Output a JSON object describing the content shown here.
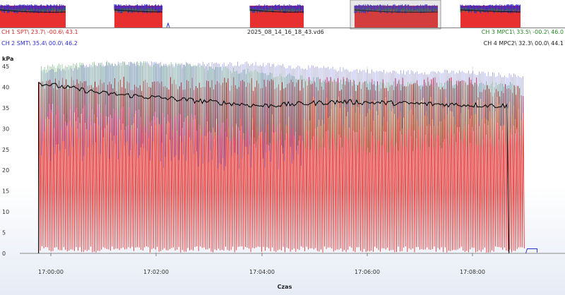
{
  "header": {
    "filename": "2025_08_14_16_18_43.vd6",
    "channels": [
      {
        "label": "CH 1 SPT\\ 23.7\\ -00.6\\ 43.1",
        "color": "#d42a2a"
      },
      {
        "label": "CH 2 SMT\\ 35.4\\ 00.0\\ 46.2",
        "color": "#2a2ad4"
      },
      {
        "label": "CH 3 MPC1\\ 33.5\\ -00.2\\ 46.0",
        "color": "#2a8a2a"
      },
      {
        "label": "CH 4 MPC2\\ 32.3\\ 00.0\\ 44.1",
        "color": "#222222"
      }
    ]
  },
  "chart_data": {
    "type": "line",
    "ylabel": "kPa",
    "xlabel": "Czas",
    "ylim": [
      0,
      45
    ],
    "yticks": [
      "0",
      "5",
      "10",
      "15",
      "20",
      "25",
      "30",
      "35",
      "40",
      "45"
    ],
    "xticks": [
      "17:00:00",
      "17:02:00",
      "17:04:00",
      "17:06:00",
      "17:08:00"
    ],
    "grid": "vertical",
    "series": [
      {
        "name": "CH 1 SPT",
        "color": "#e03030",
        "min": -0.6,
        "max": 43.1
      },
      {
        "name": "CH 2 SMT",
        "color": "#3030d0",
        "min": 0.0,
        "max": 46.2,
        "band_high": [
          43,
          45,
          45,
          45,
          44,
          43,
          43,
          42
        ]
      },
      {
        "name": "CH 3 MPC1",
        "color": "#2a9030",
        "min": -0.2,
        "max": 46.0,
        "band_high": [
          44,
          45,
          44.5,
          43,
          41,
          40,
          40,
          40
        ],
        "band_low": [
          36,
          36,
          34,
          32,
          30,
          30,
          31,
          32
        ]
      },
      {
        "name": "CH 4 MPC2",
        "color": "#111111",
        "min": 0.0,
        "max": 44.1,
        "x": [
          "16:59:46",
          "17:01:00",
          "17:02:30",
          "17:04:00",
          "17:05:30",
          "17:07:00",
          "17:08:40"
        ],
        "y": [
          41,
          38.5,
          37,
          35.5,
          36.5,
          36,
          35.5
        ]
      }
    ]
  },
  "overview": {
    "selection": "17:04:00–17:06:00",
    "segments": 5
  }
}
